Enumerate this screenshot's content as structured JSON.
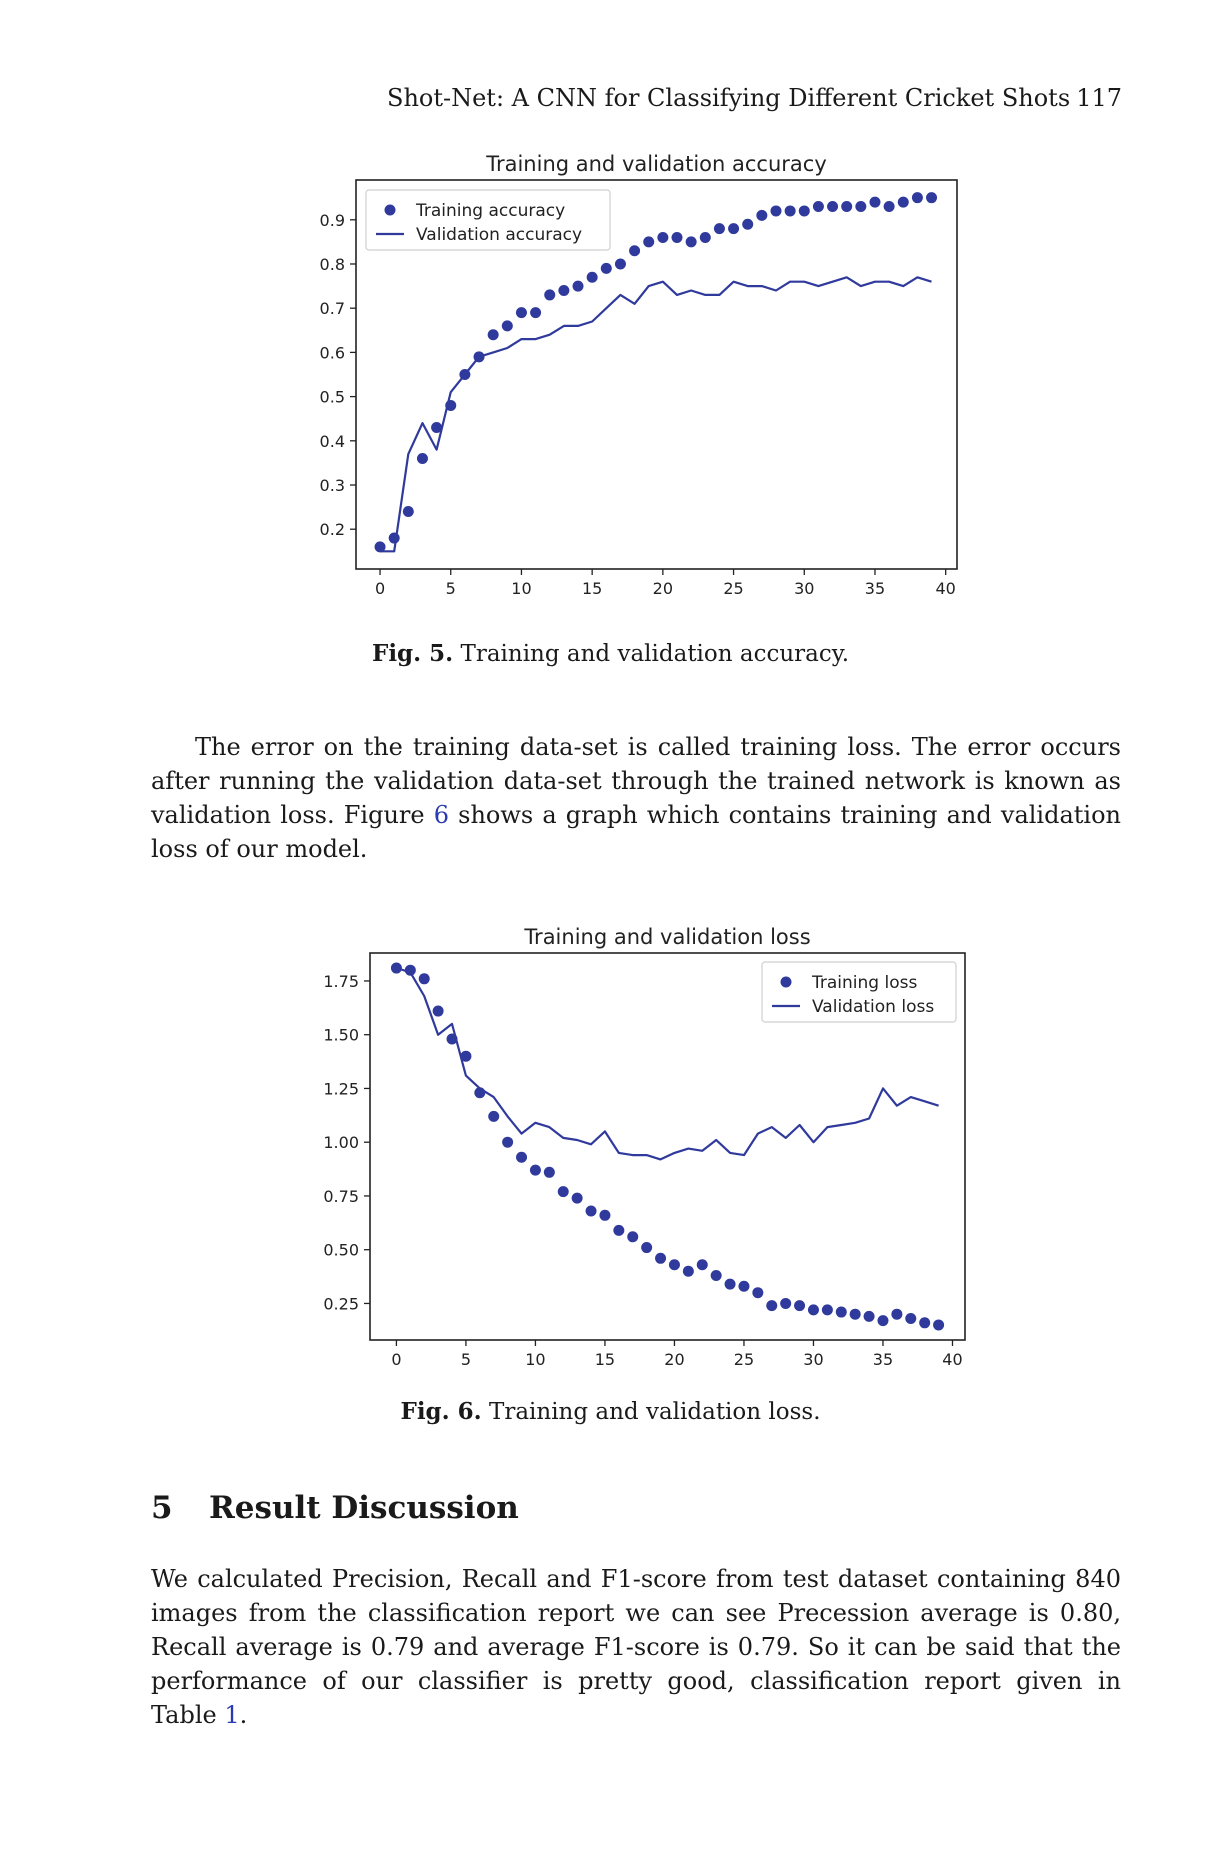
{
  "header": {
    "running_title": "Shot-Net: A CNN for Classifying Different Cricket Shots",
    "page_number": "117"
  },
  "figures": [
    {
      "caption_label": "Fig. 5.",
      "caption_text": "Training and validation accuracy."
    },
    {
      "caption_label": "Fig. 6.",
      "caption_text": "Training and validation loss."
    }
  ],
  "chart_data": [
    {
      "type": "scatter",
      "title": "Training and validation accuracy",
      "xlabel": "",
      "ylabel": "",
      "xlim": [
        -1.7,
        40.8
      ],
      "ylim": [
        0.11,
        0.99
      ],
      "xticks": [
        0,
        5,
        10,
        15,
        20,
        25,
        30,
        35,
        40
      ],
      "yticks": [
        0.2,
        0.3,
        0.4,
        0.5,
        0.6,
        0.7,
        0.8,
        0.9
      ],
      "grid": false,
      "legend_position": "upper left",
      "colors": {
        "series": "#2f3a9c"
      },
      "series": [
        {
          "name": "Training accuracy",
          "style": "dots",
          "x": [
            0,
            1,
            2,
            3,
            4,
            5,
            6,
            7,
            8,
            9,
            10,
            11,
            12,
            13,
            14,
            15,
            16,
            17,
            18,
            19,
            20,
            21,
            22,
            23,
            24,
            25,
            26,
            27,
            28,
            29,
            30,
            31,
            32,
            33,
            34,
            35,
            36,
            37,
            38,
            39
          ],
          "values": [
            0.16,
            0.18,
            0.24,
            0.36,
            0.43,
            0.48,
            0.55,
            0.59,
            0.64,
            0.66,
            0.69,
            0.69,
            0.73,
            0.74,
            0.75,
            0.77,
            0.79,
            0.8,
            0.83,
            0.85,
            0.86,
            0.86,
            0.85,
            0.86,
            0.88,
            0.88,
            0.89,
            0.91,
            0.92,
            0.92,
            0.92,
            0.93,
            0.93,
            0.93,
            0.93,
            0.94,
            0.93,
            0.94,
            0.95,
            0.95
          ]
        },
        {
          "name": "Validation accuracy",
          "style": "line",
          "x": [
            0,
            1,
            2,
            3,
            4,
            5,
            6,
            7,
            8,
            9,
            10,
            11,
            12,
            13,
            14,
            15,
            16,
            17,
            18,
            19,
            20,
            21,
            22,
            23,
            24,
            25,
            26,
            27,
            28,
            29,
            30,
            31,
            32,
            33,
            34,
            35,
            36,
            37,
            38,
            39
          ],
          "values": [
            0.15,
            0.15,
            0.37,
            0.44,
            0.38,
            0.51,
            0.55,
            0.59,
            0.6,
            0.61,
            0.63,
            0.63,
            0.64,
            0.66,
            0.66,
            0.67,
            0.7,
            0.73,
            0.71,
            0.75,
            0.76,
            0.73,
            0.74,
            0.73,
            0.73,
            0.76,
            0.75,
            0.75,
            0.74,
            0.76,
            0.76,
            0.75,
            0.76,
            0.77,
            0.75,
            0.76,
            0.76,
            0.75,
            0.77,
            0.76
          ]
        }
      ]
    },
    {
      "type": "scatter",
      "title": "Training and validation loss",
      "xlabel": "",
      "ylabel": "",
      "xlim": [
        -1.9,
        40.9
      ],
      "ylim": [
        0.08,
        1.88
      ],
      "xticks": [
        0,
        5,
        10,
        15,
        20,
        25,
        30,
        35,
        40
      ],
      "yticks": [
        0.25,
        0.5,
        0.75,
        1.0,
        1.25,
        1.5,
        1.75
      ],
      "ytick_labels": [
        "0.25",
        "0.50",
        "0.75",
        "1.00",
        "1.25",
        "1.50",
        "1.75"
      ],
      "grid": false,
      "legend_position": "upper right",
      "colors": {
        "series": "#2f3a9c"
      },
      "series": [
        {
          "name": "Training loss",
          "style": "dots",
          "x": [
            0,
            1,
            2,
            3,
            4,
            5,
            6,
            7,
            8,
            9,
            10,
            11,
            12,
            13,
            14,
            15,
            16,
            17,
            18,
            19,
            20,
            21,
            22,
            23,
            24,
            25,
            26,
            27,
            28,
            29,
            30,
            31,
            32,
            33,
            34,
            35,
            36,
            37,
            38,
            39
          ],
          "values": [
            1.81,
            1.8,
            1.76,
            1.61,
            1.48,
            1.4,
            1.23,
            1.12,
            1.0,
            0.93,
            0.87,
            0.86,
            0.77,
            0.74,
            0.68,
            0.66,
            0.59,
            0.56,
            0.51,
            0.46,
            0.43,
            0.4,
            0.43,
            0.38,
            0.34,
            0.33,
            0.3,
            0.24,
            0.25,
            0.24,
            0.22,
            0.22,
            0.21,
            0.2,
            0.19,
            0.17,
            0.2,
            0.18,
            0.16,
            0.15
          ]
        },
        {
          "name": "Validation loss",
          "style": "line",
          "x": [
            0,
            1,
            2,
            3,
            4,
            5,
            6,
            7,
            8,
            9,
            10,
            11,
            12,
            13,
            14,
            15,
            16,
            17,
            18,
            19,
            20,
            21,
            22,
            23,
            24,
            25,
            26,
            27,
            28,
            29,
            30,
            31,
            32,
            33,
            34,
            35,
            36,
            37,
            38,
            39
          ],
          "values": [
            1.81,
            1.79,
            1.68,
            1.5,
            1.55,
            1.31,
            1.25,
            1.21,
            1.12,
            1.04,
            1.09,
            1.07,
            1.02,
            1.01,
            0.99,
            1.05,
            0.95,
            0.94,
            0.94,
            0.92,
            0.95,
            0.97,
            0.96,
            1.01,
            0.95,
            0.94,
            1.04,
            1.07,
            1.02,
            1.08,
            1.0,
            1.07,
            1.08,
            1.09,
            1.11,
            1.25,
            1.17,
            1.21,
            1.19,
            1.17
          ]
        }
      ]
    }
  ],
  "paragraph_1": {
    "text_before_ref": "The error on the training data-set is called training loss. The error occurs after running the validation data-set through the trained network is known as validation loss. Figure ",
    "ref": "6",
    "text_after_ref": " shows a graph which contains training and validation loss of our model."
  },
  "section": {
    "number": "5",
    "title": "Result Discussion"
  },
  "paragraph_2": {
    "text_before_ref": "We calculated Precision, Recall and F1-score from test dataset containing 840 images from the classification report we can see Precession average is 0.80, Recall average is 0.79 and average F1-score is 0.79. So it can be said that the performance of our classifier is pretty good, classification report given in Table ",
    "ref": "1",
    "text_after_ref": "."
  }
}
